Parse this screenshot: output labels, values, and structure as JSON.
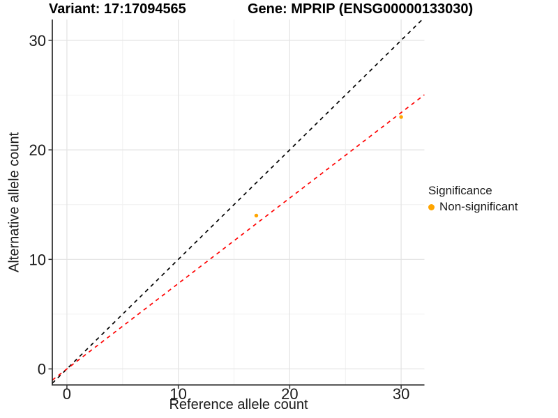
{
  "chart_data": {
    "type": "scatter",
    "title_left": "Variant: 17:17094565",
    "title_right": "Gene: MPRIP (ENSG00000133030)",
    "xlabel": "Reference allele count",
    "ylabel": "Alternative allele count",
    "x_ticks": [
      0,
      10,
      20,
      30
    ],
    "y_ticks": [
      0,
      10,
      20,
      30
    ],
    "x_minor": [
      5,
      15,
      25
    ],
    "y_minor": [
      5,
      15,
      25
    ],
    "xlim": [
      -1.31,
      32.09
    ],
    "ylim": [
      -1.46,
      31.9
    ],
    "grid": true,
    "legend_position": "right",
    "point_color": "#FFA500",
    "points": [
      {
        "x": 17,
        "y": 14,
        "series": "Non-significant"
      },
      {
        "x": 30,
        "y": 23,
        "series": "Non-significant"
      }
    ],
    "lines": [
      {
        "name": "identity",
        "slope": 1,
        "intercept": 0,
        "color": "#000000",
        "style": "dashed"
      },
      {
        "name": "fit",
        "slope": 0.78,
        "intercept": 0,
        "color": "#FF0000",
        "style": "dashed"
      }
    ],
    "legend": {
      "title": "Significance",
      "entries": [
        {
          "label": "Non-significant",
          "color": "#FFA500"
        }
      ]
    },
    "colors": {
      "major_grid": "#E3E3E3",
      "minor_grid": "#F1F1F1",
      "axis_line": "#333333",
      "tick_label": "#1A1A1A"
    }
  }
}
